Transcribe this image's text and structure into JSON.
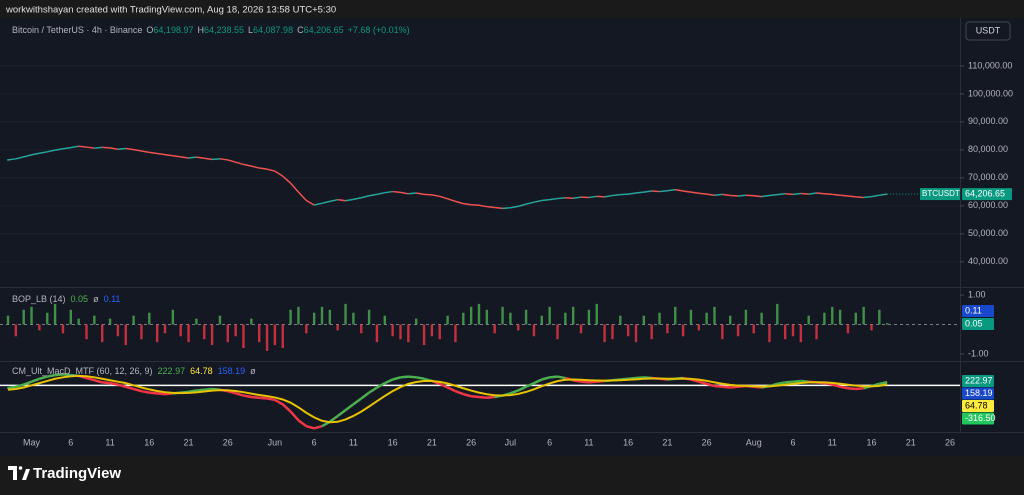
{
  "header": {
    "credit": "workwithshayan created with TradingView.com, Aug 18, 2026 13:58 UTC+5:30"
  },
  "toolbar": {
    "currency": "USDT"
  },
  "footer": {
    "brand": "TradingView"
  },
  "chart_data": [
    {
      "type": "line",
      "title": "Bitcoin / TetherUS · 4h · Binance",
      "ohlc": [
        {
          "label": "O",
          "value": "64,198.97"
        },
        {
          "label": "H",
          "value": "64,238.55"
        },
        {
          "label": "L",
          "value": "64,087.98"
        },
        {
          "label": "C",
          "value": "64,206.65"
        }
      ],
      "change": "+7.68 (+0.01%)",
      "price_label": "64,206.65",
      "categories": [
        null,
        null,
        null,
        "May",
        null,
        null,
        null,
        null,
        "6",
        null,
        null,
        null,
        null,
        "11",
        null,
        null,
        null,
        null,
        "16",
        null,
        null,
        null,
        null,
        "21",
        null,
        null,
        null,
        null,
        "26",
        null,
        null,
        null,
        null,
        null,
        "Jun",
        null,
        null,
        null,
        null,
        "6",
        null,
        null,
        null,
        null,
        "11",
        null,
        null,
        null,
        null,
        "16",
        null,
        null,
        null,
        null,
        "21",
        null,
        null,
        null,
        null,
        "26",
        null,
        null,
        null,
        null,
        "Jul",
        null,
        null,
        null,
        null,
        "6",
        null,
        null,
        null,
        null,
        "11",
        null,
        null,
        null,
        null,
        "16",
        null,
        null,
        null,
        null,
        "21",
        null,
        null,
        null,
        null,
        "26",
        null,
        null,
        null,
        null,
        null,
        "Aug",
        null,
        null,
        null,
        null,
        "6",
        null,
        null,
        null,
        null,
        "11",
        null,
        null,
        null,
        null,
        "16",
        null,
        null,
        null,
        null,
        "21",
        null,
        null,
        null,
        null,
        "26",
        null,
        null
      ],
      "series": [
        {
          "name": "BTCUSDT",
          "color": "#089981",
          "up_color": "#26a69a",
          "down_color": "#ef5350",
          "values": [
            76400,
            76800,
            77500,
            78200,
            78800,
            79300,
            79900,
            80400,
            80800,
            81300,
            81000,
            80600,
            80900,
            80700,
            80200,
            80500,
            80100,
            79600,
            79100,
            78700,
            78300,
            77900,
            77500,
            77100,
            77400,
            77000,
            76600,
            76800,
            76400,
            75600,
            74800,
            74200,
            73500,
            73100,
            72400,
            70600,
            68100,
            64900,
            61900,
            60300,
            60900,
            61600,
            62200,
            61800,
            62300,
            62900,
            63600,
            64100,
            64700,
            65100,
            64800,
            64300,
            64600,
            64100,
            63900,
            63400,
            62500,
            61600,
            60800,
            60400,
            60200,
            59700,
            59400,
            59100,
            59300,
            59800,
            60600,
            61300,
            61900,
            62200,
            62600,
            62900,
            62700,
            63100,
            63000,
            63400,
            63200,
            63700,
            64000,
            64200,
            64600,
            64900,
            65300,
            65100,
            65400,
            65800,
            65300,
            64900,
            64500,
            64200,
            63800,
            64100,
            63700,
            63500,
            63800,
            63600,
            63300,
            63700,
            64000,
            64300,
            64100,
            64400,
            64200,
            64600,
            64300,
            64100,
            63800,
            63500,
            63200,
            63000,
            63300,
            63800,
            64206.65,
            null,
            null,
            null,
            null,
            null,
            null,
            null,
            null,
            null,
            null
          ]
        }
      ],
      "ylim": [
        31000,
        126400
      ],
      "yticks": [
        {
          "value": 40000,
          "label": "40,000.00"
        },
        {
          "value": 50000,
          "label": "50,000.00"
        },
        {
          "value": 60000,
          "label": "60,000.00"
        },
        {
          "value": 70000,
          "label": "70,000.00"
        },
        {
          "value": 80000,
          "label": "80,000.00"
        },
        {
          "value": 90000,
          "label": "90,000.00"
        },
        {
          "value": 100000,
          "label": "100,000.00"
        },
        {
          "value": 110000,
          "label": "110,000.00"
        }
      ],
      "grid": true
    },
    {
      "type": "bar",
      "title": "BOP_LB (14)",
      "symbol": "ø",
      "legend_values": [
        {
          "label": "0.05",
          "color": "#4caf50"
        },
        {
          "label": "0.11",
          "color": "#2962ff"
        }
      ],
      "badges": [
        {
          "label": "0.11",
          "color": "#1848cc"
        },
        {
          "label": "0.05",
          "color": "#089981"
        }
      ],
      "up_color": "#4caf50",
      "down_color": "#f23645",
      "values": [
        0.3,
        -0.4,
        0.5,
        0.6,
        -0.2,
        0.4,
        0.7,
        -0.3,
        0.5,
        0.2,
        -0.5,
        0.3,
        -0.6,
        0.2,
        -0.4,
        -0.7,
        0.3,
        -0.5,
        0.4,
        -0.6,
        -0.3,
        0.5,
        -0.4,
        -0.6,
        0.2,
        -0.5,
        -0.7,
        0.3,
        -0.6,
        -0.4,
        -0.8,
        0.2,
        -0.6,
        -0.9,
        -0.7,
        -0.8,
        0.5,
        0.6,
        -0.3,
        0.4,
        0.6,
        0.5,
        -0.2,
        0.7,
        0.4,
        -0.3,
        0.5,
        -0.6,
        0.3,
        -0.4,
        -0.5,
        -0.6,
        0.2,
        -0.7,
        -0.4,
        -0.5,
        0.3,
        -0.6,
        0.4,
        0.6,
        0.7,
        0.5,
        -0.3,
        0.6,
        0.4,
        -0.2,
        0.5,
        -0.4,
        0.3,
        0.6,
        -0.5,
        0.4,
        0.6,
        -0.3,
        0.5,
        0.7,
        -0.6,
        -0.5,
        0.3,
        -0.4,
        -0.6,
        0.3,
        -0.5,
        0.4,
        -0.3,
        0.6,
        -0.4,
        0.5,
        -0.2,
        0.4,
        0.6,
        -0.5,
        0.3,
        -0.4,
        0.5,
        -0.3,
        0.4,
        -0.6,
        0.7,
        -0.5,
        -0.4,
        -0.6,
        0.3,
        -0.5,
        0.4,
        0.6,
        0.5,
        -0.3,
        0.4,
        0.6,
        -0.2,
        0.5,
        0.05
      ],
      "ylim": [
        -1.24,
        1.24
      ],
      "yticks": [
        {
          "value": 1,
          "label": "1.00"
        },
        {
          "value": -1,
          "label": "-1.00"
        }
      ]
    },
    {
      "type": "line",
      "title": "CM_Ult_MacD_MTF (60, 12, 26, 9)",
      "symbol": "ø",
      "legend_values": [
        {
          "label": "222.97",
          "color": "#4caf50"
        },
        {
          "label": "64.78",
          "color": "#ffeb3b"
        },
        {
          "label": "158.19",
          "color": "#2962ff"
        }
      ],
      "badges": [
        {
          "label": "222.97",
          "color": "#089981"
        },
        {
          "label": "158.19",
          "color": "#1848cc"
        },
        {
          "label": "64.78",
          "color": "#ffeb3b"
        },
        {
          "label": "-316.50",
          "color": "#22c55e"
        }
      ],
      "series": [
        {
          "color": "#4caf50",
          "up_color": "#4caf50",
          "down_color": "#f23645",
          "values": [
            -200,
            -100,
            50,
            250,
            450,
            600,
            700,
            750,
            700,
            650,
            500,
            350,
            200,
            150,
            50,
            -100,
            -250,
            -400,
            -500,
            -550,
            -600,
            -550,
            -500,
            -450,
            -350,
            -300,
            -250,
            -300,
            -400,
            -550,
            -700,
            -800,
            -850,
            -900,
            -1000,
            -1300,
            -1800,
            -2400,
            -2800,
            -2950,
            -2800,
            -2500,
            -2100,
            -1700,
            -1300,
            -900,
            -500,
            -150,
            150,
            400,
            550,
            600,
            550,
            450,
            300,
            100,
            -150,
            -400,
            -600,
            -750,
            -800,
            -850,
            -800,
            -700,
            -550,
            -350,
            -100,
            150,
            400,
            550,
            600,
            500,
            350,
            250,
            200,
            250,
            300,
            350,
            400,
            450,
            500,
            550,
            500,
            450,
            400,
            450,
            500,
            400,
            250,
            100,
            -50,
            -100,
            -150,
            -100,
            -50,
            -100,
            -150,
            -50,
            100,
            200,
            250,
            300,
            250,
            200,
            150,
            50,
            -100,
            -200,
            -250,
            -200,
            -50,
            100,
            222.97
          ]
        },
        {
          "color": "#e6c200",
          "values": [
            -300,
            -250,
            -150,
            0,
            150,
            300,
            450,
            550,
            620,
            650,
            620,
            550,
            450,
            350,
            250,
            150,
            0,
            -150,
            -280,
            -390,
            -470,
            -520,
            -530,
            -520,
            -480,
            -420,
            -360,
            -330,
            -340,
            -390,
            -470,
            -570,
            -660,
            -740,
            -830,
            -970,
            -1190,
            -1510,
            -1880,
            -2200,
            -2430,
            -2530,
            -2500,
            -2340,
            -2100,
            -1800,
            -1450,
            -1090,
            -730,
            -400,
            -120,
            100,
            230,
            300,
            300,
            240,
            130,
            -30,
            -200,
            -360,
            -500,
            -610,
            -680,
            -700,
            -670,
            -590,
            -450,
            -270,
            -60,
            130,
            290,
            380,
            400,
            380,
            350,
            330,
            320,
            330,
            350,
            380,
            410,
            450,
            470,
            465,
            450,
            450,
            460,
            440,
            390,
            310,
            200,
            110,
            30,
            -20,
            -40,
            -60,
            -80,
            -70,
            -20,
            40,
            100,
            160,
            200,
            210,
            200,
            170,
            110,
            40,
            -20,
            -60,
            -70,
            -40,
            64.78
          ]
        }
      ],
      "ylim": [
        -3200,
        1600
      ]
    }
  ]
}
